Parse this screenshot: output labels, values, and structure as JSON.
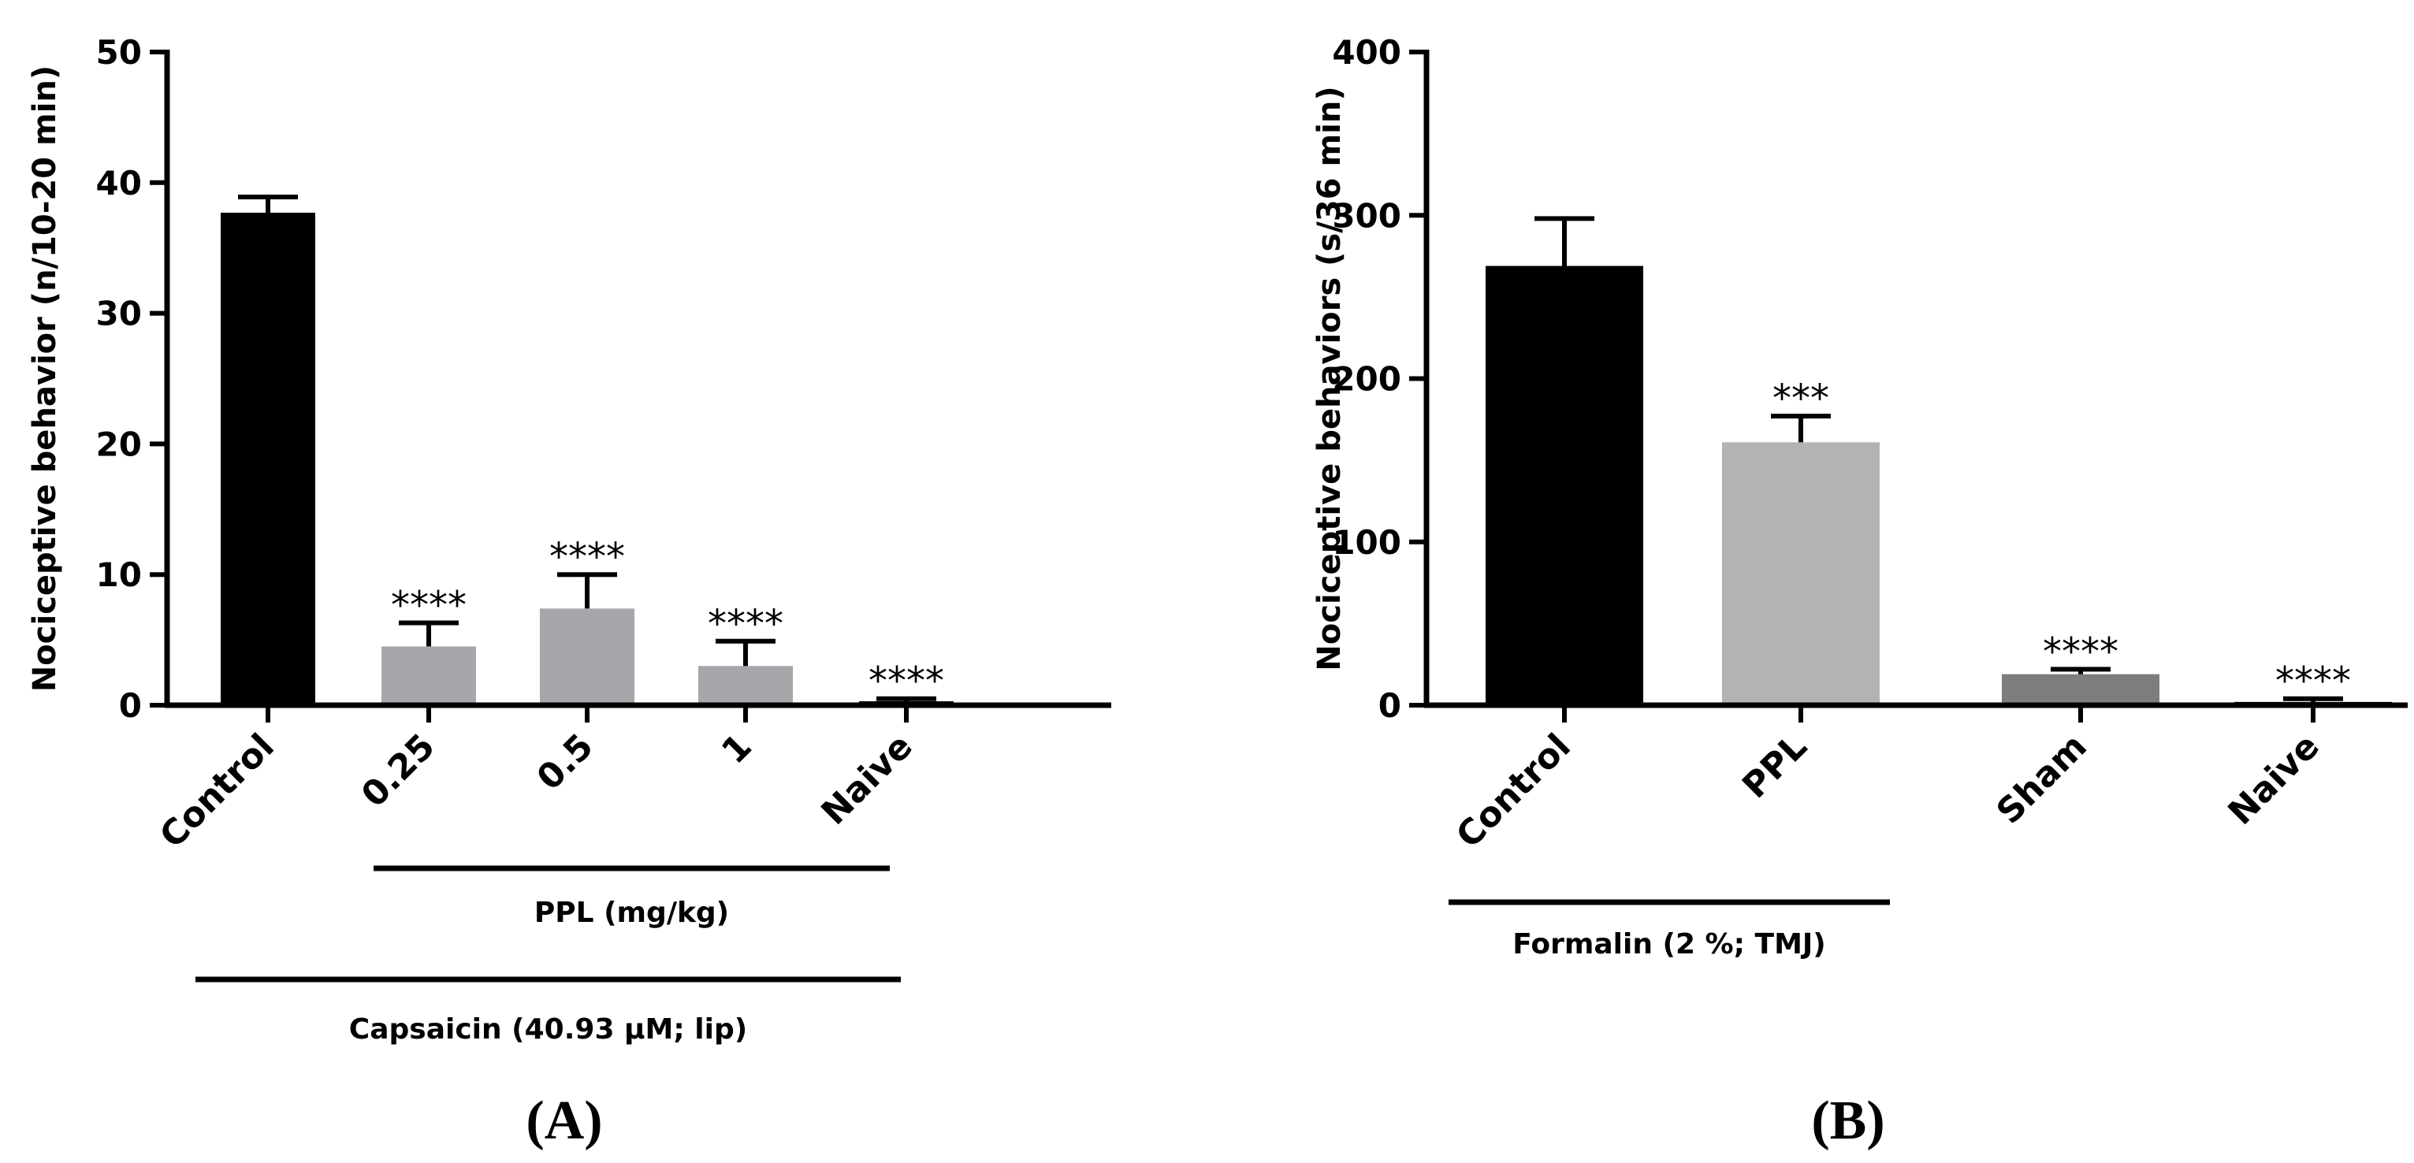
{
  "chart_data": [
    {
      "type": "bar",
      "panel_label": "(A)",
      "ylabel": "Nociceptive behavior (n/10-20 min)",
      "ylim": [
        0,
        50
      ],
      "yticks": [
        0,
        10,
        20,
        30,
        40,
        50
      ],
      "categories": [
        "Control",
        "0.25",
        "0.5",
        "1",
        "Naive"
      ],
      "values": [
        37.7,
        4.5,
        7.4,
        3.0,
        0.3
      ],
      "errors": [
        1.2,
        1.8,
        2.6,
        1.9,
        0.2
      ],
      "significance": [
        "",
        "****",
        "****",
        "****",
        "****"
      ],
      "bar_colors": [
        "#000000",
        "#a7a7ab",
        "#a7a7ab",
        "#a7a7ab",
        "#000000"
      ],
      "group_labels": [
        {
          "text": "PPL (mg/kg)",
          "from": 1,
          "to": 3
        },
        {
          "text": "Capsaicin  (40.93 µM; lip)",
          "from": 0,
          "to": 4
        }
      ],
      "grid": false
    },
    {
      "type": "bar",
      "panel_label": "(B)",
      "ylabel": "Nociceptive behaviors (s/36 min)",
      "ylim": [
        0,
        400
      ],
      "yticks": [
        0,
        100,
        200,
        300,
        400
      ],
      "categories": [
        "Control",
        "PPL",
        "Sham",
        "Naive"
      ],
      "values": [
        269,
        161,
        19,
        2
      ],
      "errors": [
        29,
        16,
        3,
        2
      ],
      "significance": [
        "",
        "***",
        "****",
        "****"
      ],
      "bar_colors": [
        "#000000",
        "#b3b3b6",
        "#7d7d80",
        "#000000"
      ],
      "group_labels": [
        {
          "text": "Formalin  (2 %; TMJ)",
          "from": 0,
          "to": 1
        }
      ],
      "grid": false
    }
  ]
}
